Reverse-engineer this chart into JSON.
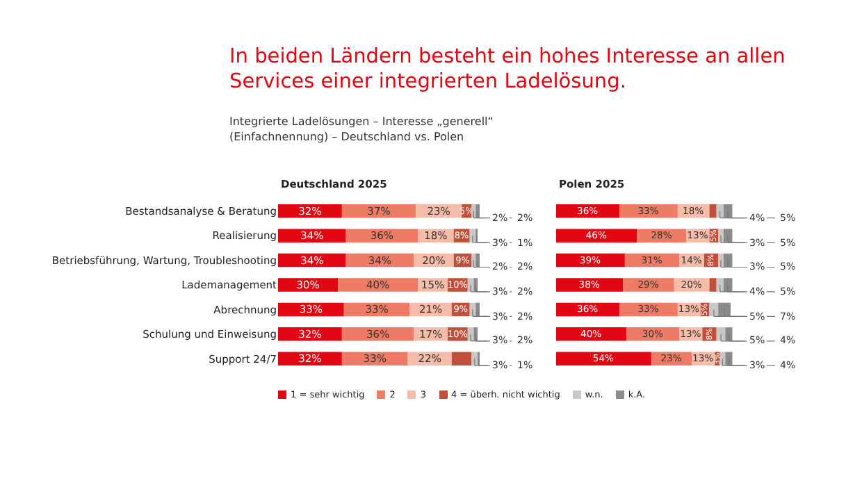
{
  "chart_data": [
    {
      "type": "bar",
      "orientation": "horizontal",
      "stacked": true,
      "title": "In beiden Ländern besteht ein hohes Interesse an allen Services einer integrierten Ladelösung.",
      "subtitle": "Integrierte Ladelösungen – Interesse „generell“\n(Einfachnennung) – Deutschland vs. Polen",
      "annotations": [
        "Deutschland 2025"
      ],
      "categories": [
        "Bestandsanalyse & Beratung",
        "Realisierung",
        "Betriebsführung, Wartung, Troubleshooting",
        "Lademanagement",
        "Abrechnung",
        "Schulung und Einweisung",
        "Support 24/7"
      ],
      "xlim": [
        0,
        101
      ],
      "tick_labels": "y",
      "legend": "bottom",
      "series": [
        {
          "name": "1 = sehr wichtig",
          "color": "#e30613",
          "values": [
            32,
            34,
            34,
            30,
            33,
            32,
            32
          ],
          "value_labels": [
            "32%",
            "34%",
            "34%",
            "30%",
            "33%",
            "32%",
            "32%"
          ]
        },
        {
          "name": "2",
          "color": "#ee7b66",
          "values": [
            37,
            36,
            34,
            40,
            33,
            36,
            33
          ],
          "value_labels": [
            "37%",
            "36%",
            "34%",
            "40%",
            "33%",
            "36%",
            "33%"
          ]
        },
        {
          "name": "3",
          "color": "#f5bca9",
          "values": [
            23,
            18,
            20,
            15,
            21,
            17,
            22
          ],
          "value_labels": [
            "23%",
            "18%",
            "20%",
            "15%",
            "21%",
            "17%",
            "22%"
          ]
        },
        {
          "name": "4 = überh. nicht wichtig",
          "color": "#c0503a",
          "values": [
            5,
            8,
            9,
            10,
            9,
            10,
            10
          ],
          "value_labels": [
            "5%",
            "8%",
            "9%",
            "10%",
            "9%",
            "10%",
            null
          ]
        },
        {
          "name": "w.n.",
          "color": "#c8c8c8",
          "values": [
            2,
            3,
            2,
            3,
            3,
            3,
            3
          ],
          "value_labels": [
            "2%",
            "3%",
            "2%",
            "3%",
            "3%",
            "3%",
            "3%"
          ]
        },
        {
          "name": "k.A.",
          "color": "#8a8a8a",
          "values": [
            2,
            1,
            2,
            2,
            2,
            2,
            1
          ],
          "value_labels": [
            "2%",
            "1%",
            "2%",
            "2%",
            "2%",
            "2%",
            "1%"
          ]
        }
      ]
    },
    {
      "type": "bar",
      "orientation": "horizontal",
      "stacked": true,
      "annotations": [
        "Polen 2025"
      ],
      "categories": [
        null,
        null,
        null,
        null,
        null,
        null,
        null
      ],
      "xlim": [
        0,
        101
      ],
      "tick_labels": false,
      "series": [
        {
          "color": "#e30613",
          "values": [
            36,
            46,
            39,
            38,
            36,
            40,
            54
          ],
          "value_labels": [
            "36%",
            "46%",
            "39%",
            "38%",
            "36%",
            "40%",
            "54%"
          ]
        },
        {
          "color": "#ee7b66",
          "values": [
            33,
            28,
            31,
            29,
            33,
            30,
            23
          ],
          "value_labels": [
            "33%",
            "28%",
            "31%",
            "29%",
            "33%",
            "30%",
            "23%"
          ]
        },
        {
          "color": "#f5bca9",
          "values": [
            18,
            13,
            14,
            20,
            13,
            13,
            13
          ],
          "value_labels": [
            "18%",
            "13%",
            "14%",
            "20%",
            "13%",
            "13%",
            "13%"
          ]
        },
        {
          "color": "#c0503a",
          "values": [
            4,
            5,
            8,
            4,
            5,
            8,
            3
          ],
          "value_labels": [
            null,
            "5%",
            "8%",
            null,
            "5%",
            "8%",
            "3%"
          ]
        },
        {
          "color": "#c8c8c8",
          "values": [
            4,
            3,
            3,
            4,
            5,
            5,
            3
          ],
          "value_labels": [
            "4%",
            "3%",
            "3%",
            "4%",
            "5%",
            "5%",
            "3%"
          ]
        },
        {
          "color": "#8a8a8a",
          "values": [
            5,
            5,
            5,
            5,
            7,
            4,
            4
          ],
          "value_labels": [
            "5%",
            "5%",
            "5%",
            "5%",
            "7%",
            "4%",
            "4%"
          ]
        }
      ]
    }
  ]
}
